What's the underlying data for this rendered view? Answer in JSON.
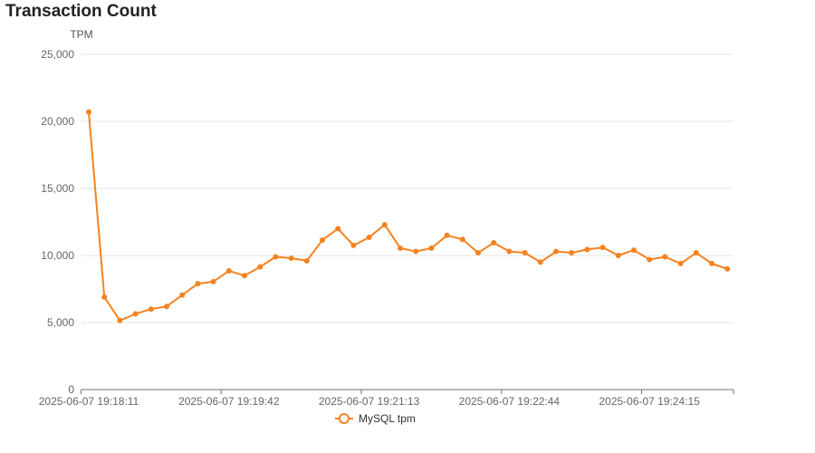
{
  "page": {
    "title": "Transaction Count"
  },
  "chart_data": {
    "type": "line",
    "title": "Transaction Count",
    "ylabel": "TPM",
    "xlabel": "",
    "ylim": [
      0,
      25000
    ],
    "yticks": [
      0,
      5000,
      10000,
      15000,
      20000,
      25000
    ],
    "ytick_labels": [
      "0",
      "5,000",
      "10,000",
      "15,000",
      "20,000",
      "25,000"
    ],
    "xtick_labels": [
      "2025-06-07 19:18:11",
      "2025-06-07 19:19:42",
      "2025-06-07 19:21:13",
      "2025-06-07 19:22:44",
      "2025-06-07 19:24:15"
    ],
    "xtick_index": [
      0,
      9,
      18,
      27,
      36
    ],
    "grid": true,
    "legend": "bottom-center",
    "colors": {
      "series": "#f5821f",
      "grid": "#e6e6e6",
      "axis": "#6e7079"
    },
    "series": [
      {
        "name": "MySQL tpm",
        "values": [
          20700,
          6900,
          5150,
          5650,
          6000,
          6200,
          7050,
          7900,
          8050,
          8850,
          8500,
          9150,
          9900,
          9800,
          9600,
          11150,
          12000,
          10750,
          11350,
          12300,
          10550,
          10300,
          10550,
          11500,
          11200,
          10200,
          10950,
          10300,
          10200,
          9500,
          10300,
          10200,
          10450,
          10600,
          10000,
          10400,
          9700,
          9900,
          9400,
          10200,
          9400,
          9000
        ]
      }
    ]
  }
}
